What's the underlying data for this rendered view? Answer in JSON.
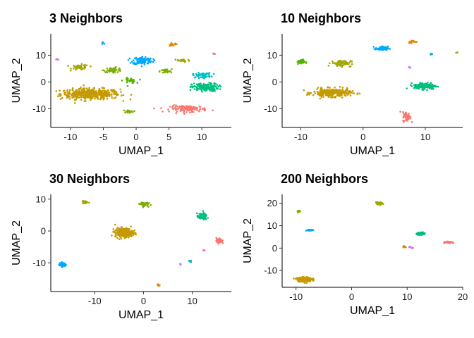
{
  "chart_data": [
    {
      "type": "scatter",
      "title": "3 Neighbors",
      "xlabel": "UMAP_1",
      "ylabel": "UMAP_2",
      "xlim": [
        -13,
        14.5
      ],
      "ylim": [
        -17,
        18
      ],
      "xticks": [
        -10,
        -5,
        0,
        5,
        10
      ],
      "yticks": [
        -10,
        0,
        10
      ],
      "clusters": [
        {
          "color": "#C49A00",
          "cx": -7.0,
          "cy": -4.5,
          "sx": 4.5,
          "sy": 2.0,
          "n": 420
        },
        {
          "color": "#A3A500",
          "cx": -8.5,
          "cy": 5.5,
          "sx": 1.3,
          "sy": 1.0,
          "n": 50
        },
        {
          "color": "#7CAE00",
          "cx": -3.5,
          "cy": 4.5,
          "sx": 1.4,
          "sy": 0.9,
          "n": 50
        },
        {
          "color": "#53B400",
          "cx": -1.0,
          "cy": 0.5,
          "sx": 1.0,
          "sy": 1.0,
          "n": 30
        },
        {
          "color": "#7CAE00",
          "cx": -1.2,
          "cy": -11.0,
          "sx": 0.8,
          "sy": 0.5,
          "n": 20
        },
        {
          "color": "#7CAE00",
          "cx": 4.5,
          "cy": 4.0,
          "sx": 0.9,
          "sy": 0.8,
          "n": 30
        },
        {
          "color": "#A3A500",
          "cx": 7.0,
          "cy": 8.0,
          "sx": 1.2,
          "sy": 0.6,
          "n": 30
        },
        {
          "color": "#00A9FF",
          "cx": 1.0,
          "cy": 8.0,
          "sx": 1.5,
          "sy": 1.5,
          "n": 120
        },
        {
          "color": "#00BF7D",
          "cx": 10.5,
          "cy": -2.0,
          "sx": 2.0,
          "sy": 1.5,
          "n": 170
        },
        {
          "color": "#00BFC4",
          "cx": 10.0,
          "cy": 2.5,
          "sx": 1.4,
          "sy": 0.9,
          "n": 60
        },
        {
          "color": "#F8766D",
          "cx": 8.0,
          "cy": -10.0,
          "sx": 2.8,
          "sy": 1.2,
          "n": 120
        },
        {
          "color": "#E58700",
          "cx": 5.5,
          "cy": 14.0,
          "sx": 0.8,
          "sy": 0.5,
          "n": 15
        },
        {
          "color": "#00A9FF",
          "cx": -5.0,
          "cy": 14.5,
          "sx": 0.4,
          "sy": 0.4,
          "n": 6
        },
        {
          "color": "#C77CFF",
          "cx": -12.0,
          "cy": 8.5,
          "sx": 0.3,
          "sy": 0.3,
          "n": 4
        },
        {
          "color": "#FF61C3",
          "cx": 12.0,
          "cy": 10.5,
          "sx": 0.3,
          "sy": 0.3,
          "n": 4
        }
      ]
    },
    {
      "type": "scatter",
      "title": "10 Neighbors",
      "xlabel": "UMAP_1",
      "ylabel": "UMAP_2",
      "xlim": [
        -13,
        16
      ],
      "ylim": [
        -17,
        18
      ],
      "xticks": [
        -10,
        0,
        10
      ],
      "yticks": [
        -10,
        0,
        10
      ],
      "clusters": [
        {
          "color": "#C49A00",
          "cx": -5.0,
          "cy": -4.0,
          "sx": 3.0,
          "sy": 1.5,
          "n": 300
        },
        {
          "color": "#A3A500",
          "cx": -3.5,
          "cy": 7.0,
          "sx": 1.6,
          "sy": 1.2,
          "n": 70
        },
        {
          "color": "#53B400",
          "cx": -10.0,
          "cy": 7.5,
          "sx": 0.6,
          "sy": 0.8,
          "n": 40
        },
        {
          "color": "#00A9FF",
          "cx": 3.0,
          "cy": 12.5,
          "sx": 1.0,
          "sy": 0.8,
          "n": 60
        },
        {
          "color": "#00BF7D",
          "cx": 10.0,
          "cy": -1.5,
          "sx": 1.8,
          "sy": 1.2,
          "n": 160
        },
        {
          "color": "#F8766D",
          "cx": 7.0,
          "cy": -13.0,
          "sx": 0.6,
          "sy": 1.8,
          "n": 60
        },
        {
          "color": "#E58700",
          "cx": 8.0,
          "cy": 15.0,
          "sx": 0.7,
          "sy": 0.5,
          "n": 20
        },
        {
          "color": "#00BFC4",
          "cx": 11.0,
          "cy": 10.5,
          "sx": 0.3,
          "sy": 0.3,
          "n": 8
        },
        {
          "color": "#C77CFF",
          "cx": 7.5,
          "cy": 5.5,
          "sx": 0.25,
          "sy": 0.25,
          "n": 5
        },
        {
          "color": "#A3A500",
          "cx": 15.0,
          "cy": 11.0,
          "sx": 0.2,
          "sy": 0.2,
          "n": 3
        }
      ]
    },
    {
      "type": "scatter",
      "title": "30 Neighbors",
      "xlabel": "UMAP_1",
      "ylabel": "UMAP_2",
      "xlim": [
        -19,
        18
      ],
      "ylim": [
        -19,
        11.5
      ],
      "xticks": [
        -10,
        0,
        10
      ],
      "yticks": [
        -10,
        0,
        10
      ],
      "clusters": [
        {
          "color": "#C49A00",
          "cx": -4.0,
          "cy": -0.5,
          "sx": 1.8,
          "sy": 1.4,
          "n": 280
        },
        {
          "color": "#A3A500",
          "cx": -12.0,
          "cy": 9.0,
          "sx": 0.6,
          "sy": 0.5,
          "n": 30
        },
        {
          "color": "#7CAE00",
          "cx": 0.0,
          "cy": 8.5,
          "sx": 0.9,
          "sy": 0.7,
          "n": 40
        },
        {
          "color": "#00A9FF",
          "cx": -16.5,
          "cy": -10.5,
          "sx": 0.7,
          "sy": 0.7,
          "n": 50
        },
        {
          "color": "#00BF7D",
          "cx": 12.0,
          "cy": 4.5,
          "sx": 1.0,
          "sy": 1.0,
          "n": 90
        },
        {
          "color": "#F8766D",
          "cx": 15.5,
          "cy": -3.0,
          "sx": 0.6,
          "sy": 0.9,
          "n": 40
        },
        {
          "color": "#E58700",
          "cx": 3.0,
          "cy": -17.0,
          "sx": 0.4,
          "sy": 0.3,
          "n": 12
        },
        {
          "color": "#00BFC4",
          "cx": 9.5,
          "cy": -9.5,
          "sx": 0.3,
          "sy": 0.3,
          "n": 6
        },
        {
          "color": "#C77CFF",
          "cx": 7.5,
          "cy": -10.5,
          "sx": 0.25,
          "sy": 0.25,
          "n": 4
        },
        {
          "color": "#FF61C3",
          "cx": 12.5,
          "cy": -6.0,
          "sx": 0.2,
          "sy": 0.2,
          "n": 3
        }
      ]
    },
    {
      "type": "scatter",
      "title": "200 Neighbors",
      "xlabel": "UMAP_1",
      "ylabel": "UMAP_2",
      "xlim": [
        -12.5,
        20
      ],
      "ylim": [
        -17.5,
        24
      ],
      "xticks": [
        -10,
        0,
        10,
        20
      ],
      "yticks": [
        -10,
        0,
        10,
        20
      ],
      "clusters": [
        {
          "color": "#C49A00",
          "cx": -8.5,
          "cy": -14.0,
          "sx": 1.3,
          "sy": 1.0,
          "n": 250
        },
        {
          "color": "#7CAE00",
          "cx": -9.5,
          "cy": 16.5,
          "sx": 0.3,
          "sy": 0.5,
          "n": 20
        },
        {
          "color": "#A3A500",
          "cx": 5.0,
          "cy": 20.0,
          "sx": 0.6,
          "sy": 0.5,
          "n": 40
        },
        {
          "color": "#00A9FF",
          "cx": -7.5,
          "cy": 8.0,
          "sx": 0.5,
          "sy": 0.4,
          "n": 30
        },
        {
          "color": "#00BF7D",
          "cx": 12.5,
          "cy": 6.5,
          "sx": 0.8,
          "sy": 0.5,
          "n": 70
        },
        {
          "color": "#F8766D",
          "cx": 17.5,
          "cy": 2.5,
          "sx": 1.0,
          "sy": 0.35,
          "n": 40
        },
        {
          "color": "#E58700",
          "cx": 9.5,
          "cy": 0.5,
          "sx": 0.4,
          "sy": 0.3,
          "n": 10
        },
        {
          "color": "#C77CFF",
          "cx": 10.5,
          "cy": 0.5,
          "sx": 0.2,
          "sy": 0.2,
          "n": 5
        },
        {
          "color": "#FF61C3",
          "cx": 11.0,
          "cy": 0.0,
          "sx": 0.2,
          "sy": 0.2,
          "n": 4
        }
      ]
    }
  ]
}
